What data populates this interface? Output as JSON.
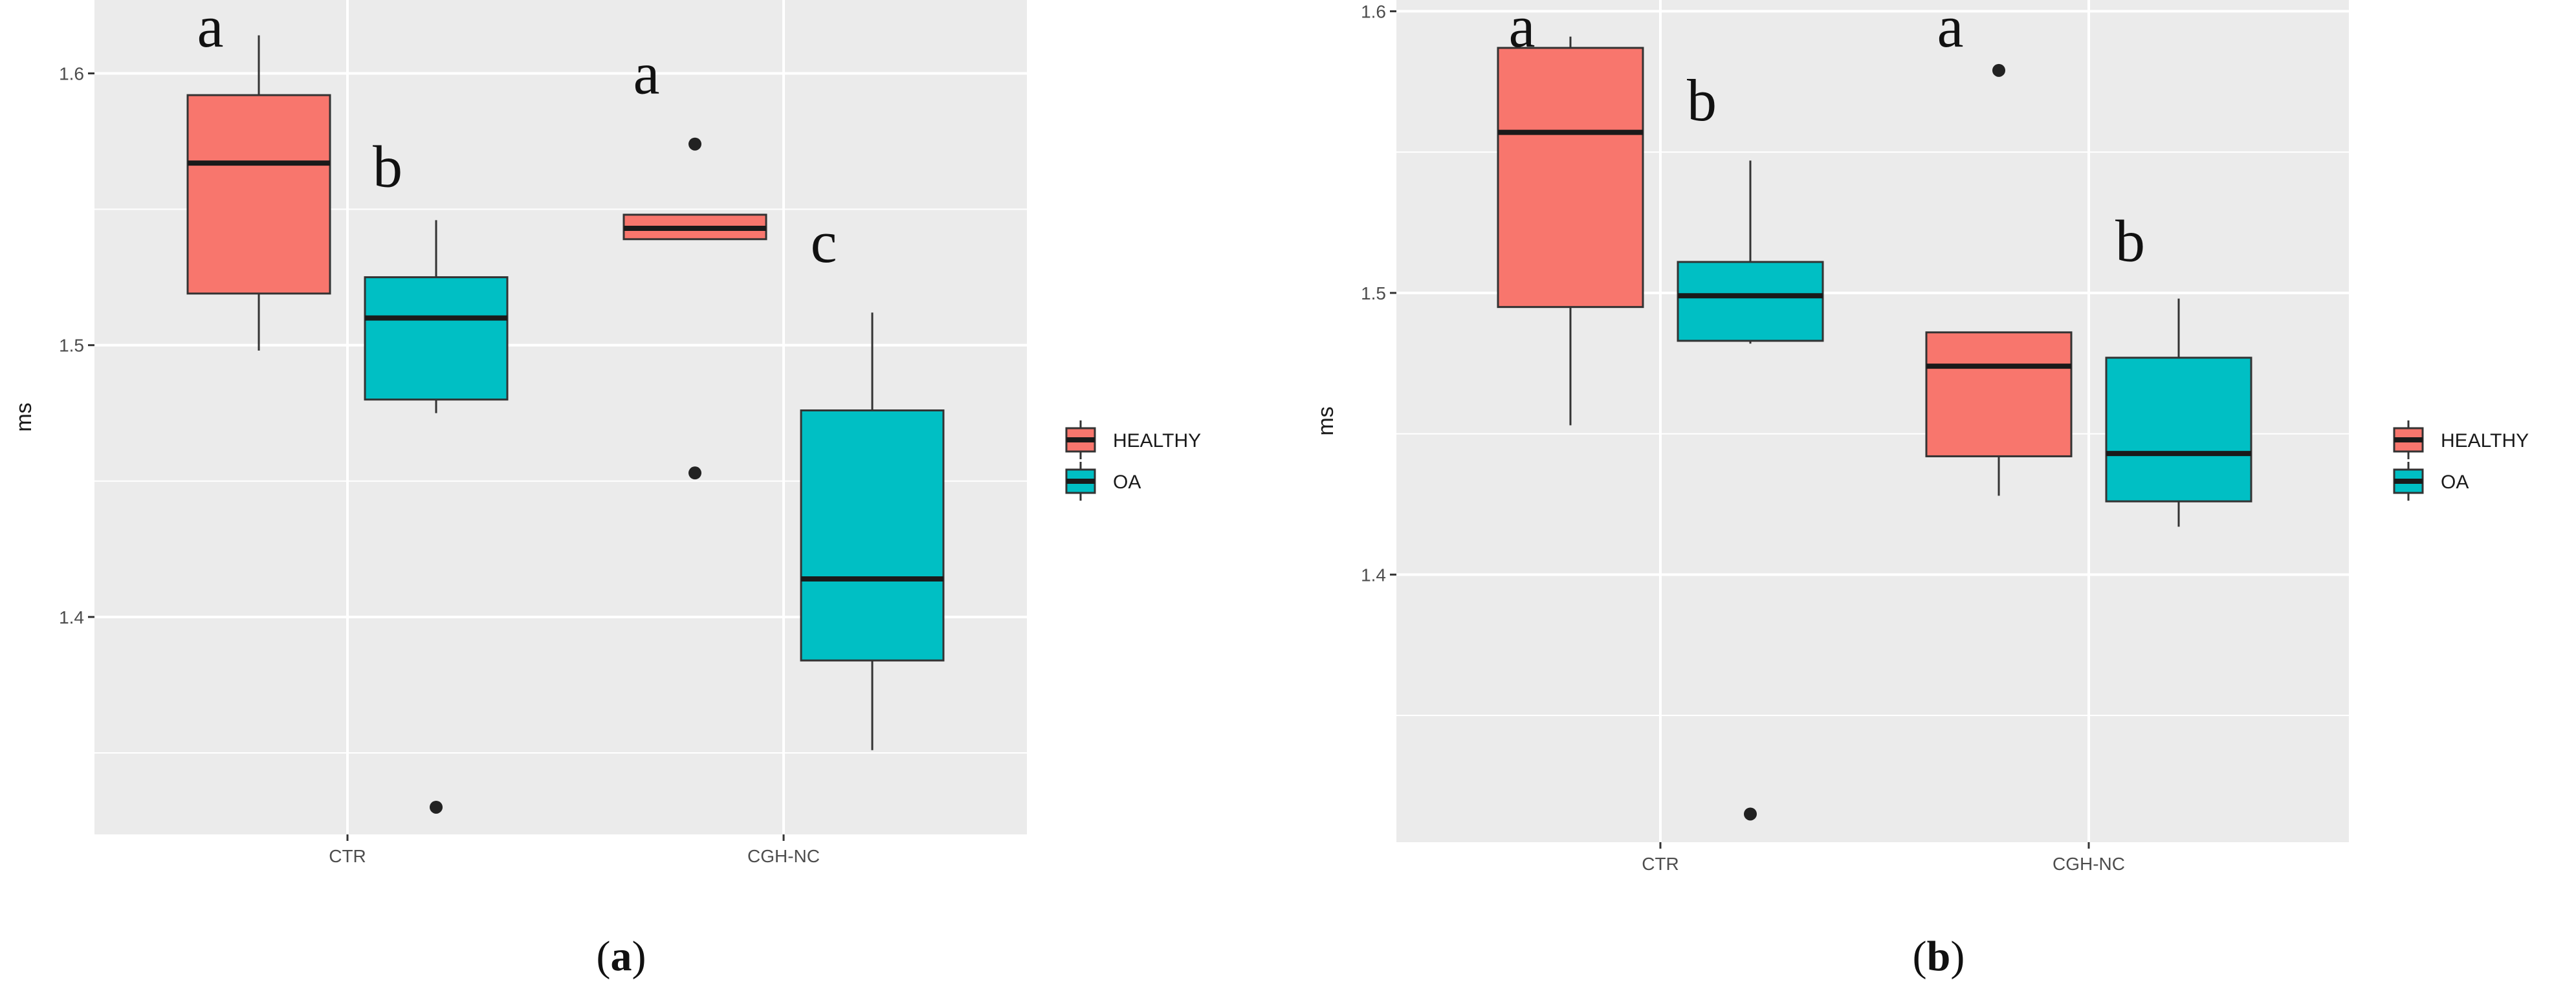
{
  "chart_data": [
    {
      "type": "boxplot",
      "panel_label": "a",
      "ylabel": "ms",
      "xlabel": "",
      "ylim": [
        1.32,
        1.627
      ],
      "yticks": [
        1.4,
        1.5,
        1.6
      ],
      "ytick_labels": [
        "1.4",
        "1.5",
        "1.6"
      ],
      "categories": [
        "CTR",
        "CGH-NC"
      ],
      "legend": [
        {
          "name": "HEALTHY",
          "color": "#F8766D"
        },
        {
          "name": "OA",
          "color": "#00BFC4"
        }
      ],
      "boxes": [
        {
          "category": "CTR",
          "group": "HEALTHY",
          "lower_whisker": 1.498,
          "q1": 1.519,
          "median": 1.567,
          "q3": 1.592,
          "upper_whisker": 1.614,
          "outliers": [],
          "letter": "a"
        },
        {
          "category": "CTR",
          "group": "OA",
          "lower_whisker": 1.475,
          "q1": 1.48,
          "median": 1.51,
          "q3": 1.525,
          "upper_whisker": 1.546,
          "outliers": [
            1.33
          ],
          "letter": "b"
        },
        {
          "category": "CGH-NC",
          "group": "HEALTHY",
          "lower_whisker": 1.539,
          "q1": 1.539,
          "median": 1.543,
          "q3": 1.548,
          "upper_whisker": 1.548,
          "outliers": [
            1.574,
            1.453
          ],
          "letter": "a"
        },
        {
          "category": "CGH-NC",
          "group": "OA",
          "lower_whisker": 1.351,
          "q1": 1.384,
          "median": 1.414,
          "q3": 1.476,
          "upper_whisker": 1.512,
          "outliers": [],
          "letter": "c"
        }
      ]
    },
    {
      "type": "boxplot",
      "panel_label": "b",
      "ylabel": "ms",
      "xlabel": "",
      "ylim": [
        1.305,
        1.604
      ],
      "yticks": [
        1.4,
        1.5,
        1.6
      ],
      "ytick_labels": [
        "1.4",
        "1.5",
        "1.6"
      ],
      "categories": [
        "CTR",
        "CGH-NC"
      ],
      "legend": [
        {
          "name": "HEALTHY",
          "color": "#F8766D"
        },
        {
          "name": "OA",
          "color": "#00BFC4"
        }
      ],
      "boxes": [
        {
          "category": "CTR",
          "group": "HEALTHY",
          "lower_whisker": 1.453,
          "q1": 1.495,
          "median": 1.557,
          "q3": 1.587,
          "upper_whisker": 1.591,
          "outliers": [],
          "letter": "a"
        },
        {
          "category": "CTR",
          "group": "OA",
          "lower_whisker": 1.482,
          "q1": 1.483,
          "median": 1.499,
          "q3": 1.511,
          "upper_whisker": 1.547,
          "outliers": [
            1.315
          ],
          "letter": "b"
        },
        {
          "category": "CGH-NC",
          "group": "HEALTHY",
          "lower_whisker": 1.428,
          "q1": 1.442,
          "median": 1.474,
          "q3": 1.486,
          "upper_whisker": 1.486,
          "outliers": [
            1.579
          ],
          "letter": "a"
        },
        {
          "category": "CGH-NC",
          "group": "OA",
          "lower_whisker": 1.417,
          "q1": 1.426,
          "median": 1.443,
          "q3": 1.477,
          "upper_whisker": 1.498,
          "outliers": [],
          "letter": "b"
        }
      ]
    }
  ]
}
